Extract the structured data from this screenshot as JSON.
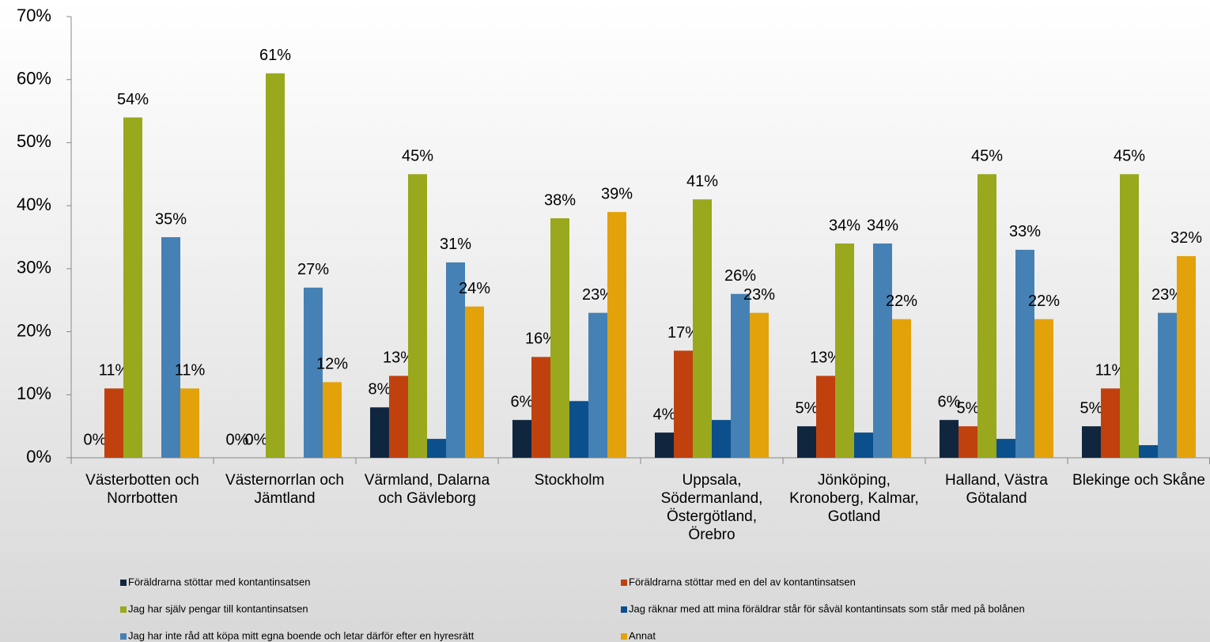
{
  "chart_data": {
    "type": "bar",
    "categories": [
      "Västerbotten och Norrbotten",
      "Västernorrlan och Jämtland",
      "Värmland, Dalarna och Gävleborg",
      "Stockholm",
      "Uppsala, Södermanland, Östergötland, Örebro",
      "Jönköping, Kronoberg, Kalmar, Gotland",
      "Halland, Västra Götaland",
      "Blekinge och Skåne"
    ],
    "series": [
      {
        "name": "Föräldrarna stöttar med kontantinsatsen",
        "color": "#10263f",
        "values": [
          0,
          0,
          8,
          6,
          4,
          5,
          6,
          5
        ],
        "value_labels": [
          "0%",
          "0%",
          "8%",
          "6%",
          "4%",
          "5%",
          "6%",
          "5%"
        ]
      },
      {
        "name": "Föräldrarna stöttar med en del av kontantinsatsen",
        "color": "#c0410e",
        "values": [
          11,
          0,
          13,
          16,
          17,
          13,
          5,
          11
        ],
        "value_labels": [
          "11%",
          "0%",
          "13%",
          "16%",
          "17%",
          "13%",
          "5%",
          "11%"
        ]
      },
      {
        "name": "Jag har själv pengar till kontantinsatsen",
        "color": "#99a81d",
        "values": [
          54,
          61,
          45,
          38,
          41,
          34,
          45,
          45
        ],
        "value_labels": [
          "54%",
          "61%",
          "45%",
          "38%",
          "41%",
          "34%",
          "45%",
          "45%"
        ]
      },
      {
        "name": "Jag räknar med att mina föräldrar står för såväl kontantinsats som står med på bolånen",
        "color": "#0b4f8c",
        "values": [
          0,
          0,
          3,
          9,
          6,
          4,
          3,
          2
        ]
      },
      {
        "name": "Jag har inte råd att köpa mitt egna boende och letar därför efter en hyresrätt",
        "color": "#4581b4",
        "values": [
          35,
          27,
          31,
          23,
          26,
          34,
          33,
          23
        ],
        "value_labels": [
          "35%",
          "27%",
          "31%",
          "23%",
          "26%",
          "34%",
          "33%",
          "23%"
        ]
      },
      {
        "name": "Annat",
        "color": "#e3a20a",
        "values": [
          11,
          12,
          24,
          39,
          23,
          22,
          22,
          32
        ],
        "value_labels": [
          "11%",
          "12%",
          "24%",
          "39%",
          "23%",
          "22%",
          "22%",
          "32%"
        ]
      }
    ],
    "ylim": [
      0,
      70
    ],
    "yticks": [
      {
        "value": 0,
        "label": "0%"
      },
      {
        "value": 10,
        "label": "10%"
      },
      {
        "value": 20,
        "label": "20%"
      },
      {
        "value": 30,
        "label": "30%"
      },
      {
        "value": 40,
        "label": "40%"
      },
      {
        "value": 50,
        "label": "50%"
      },
      {
        "value": 60,
        "label": "60%"
      },
      {
        "value": 70,
        "label": "70%"
      }
    ],
    "legend": "bottom"
  }
}
